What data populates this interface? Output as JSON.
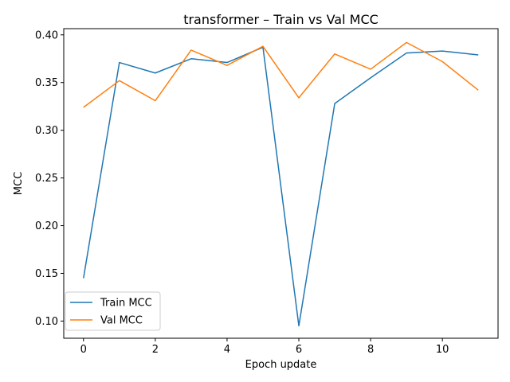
{
  "chart_data": {
    "type": "line",
    "title": "transformer – Train vs Val MCC",
    "xlabel": "Epoch update",
    "ylabel": "MCC",
    "x": [
      0,
      1,
      2,
      3,
      4,
      5,
      6,
      7,
      8,
      9,
      10,
      11
    ],
    "xlim": [
      -0.55,
      11.55
    ],
    "ylim": [
      0.082,
      0.4065
    ],
    "xticks": [
      0,
      2,
      4,
      6,
      8,
      10
    ],
    "yticks": [
      0.1,
      0.15,
      0.2,
      0.25,
      0.3,
      0.35,
      0.4
    ],
    "ytick_labels": [
      "0.10",
      "0.15",
      "0.20",
      "0.25",
      "0.30",
      "0.35",
      "0.40"
    ],
    "grid": false,
    "legend_position": "lower-left",
    "series": [
      {
        "name": "Train MCC",
        "color": "#1f77b4",
        "values": [
          0.145,
          0.371,
          0.36,
          0.375,
          0.371,
          0.387,
          0.095,
          0.328,
          0.355,
          0.381,
          0.383,
          0.379
        ]
      },
      {
        "name": "Val MCC",
        "color": "#ff7f0e",
        "values": [
          0.324,
          0.352,
          0.331,
          0.384,
          0.368,
          0.388,
          0.334,
          0.38,
          0.364,
          0.392,
          0.372,
          0.342
        ]
      }
    ]
  }
}
